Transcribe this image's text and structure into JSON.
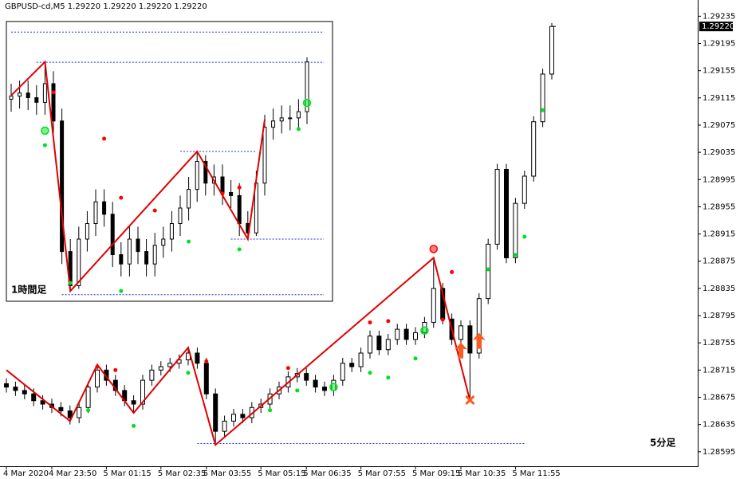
{
  "chart_data": [
    {
      "type": "candlestick",
      "title": "GBPUSD-cd,M5  1.29220 1.29220 1.29220 1.29220",
      "label": "5分足",
      "categories": [
        "4 Mar 2020",
        null,
        null,
        null,
        null,
        "4 Mar 23:50",
        null,
        null,
        null,
        null,
        null,
        "5 Mar 01:15",
        null,
        null,
        null,
        null,
        null,
        "5 Mar 02:35",
        null,
        null,
        null,
        null,
        "5 Mar 03:55",
        null,
        null,
        null,
        null,
        null,
        "5 Mar 05:15",
        null,
        null,
        null,
        null,
        "5 Mar 06:35",
        null,
        null,
        null,
        null,
        null,
        "5 Mar 07:55",
        null,
        null,
        null,
        null,
        null,
        "5 Mar 09:15",
        null,
        null,
        null,
        null,
        "5 Mar 10:35",
        null,
        null,
        null,
        null,
        null,
        "5 Mar 11:55",
        null,
        null,
        null,
        null
      ],
      "open": [
        1.28695,
        1.2869,
        1.28685,
        1.2868,
        1.2867,
        1.28665,
        1.2866,
        1.28655,
        1.28645,
        1.2866,
        1.2869,
        1.28715,
        1.287,
        1.28685,
        1.2867,
        1.28665,
        1.287,
        1.28715,
        1.2872,
        1.28725,
        1.2873,
        1.2874,
        1.28725,
        1.2868,
        1.28625,
        1.2864,
        1.2865,
        1.28645,
        1.2866,
        1.28665,
        1.2868,
        1.2869,
        1.28705,
        1.2871,
        1.287,
        1.2869,
        1.28685,
        1.287,
        1.28725,
        1.2872,
        1.2874,
        1.28765,
        1.28745,
        1.2876,
        1.28775,
        1.2876,
        1.2877,
        1.28785,
        1.28835,
        1.2879,
        1.2876,
        1.2878,
        1.2874,
        1.2882,
        1.289,
        1.2901,
        1.2888,
        1.2896,
        1.29,
        1.2908,
        1.2915
      ],
      "high": [
        1.28703,
        1.28698,
        1.28693,
        1.28688,
        1.28678,
        1.28673,
        1.28668,
        1.28663,
        1.28668,
        1.28698,
        1.28723,
        1.28723,
        1.28708,
        1.28693,
        1.28678,
        1.28708,
        1.28723,
        1.28728,
        1.28733,
        1.28738,
        1.28748,
        1.28748,
        1.28733,
        1.28688,
        1.28648,
        1.28658,
        1.28658,
        1.28668,
        1.28673,
        1.28688,
        1.28698,
        1.28713,
        1.28718,
        1.28718,
        1.28708,
        1.28698,
        1.28708,
        1.28733,
        1.28733,
        1.28748,
        1.28773,
        1.28773,
        1.28768,
        1.28783,
        1.28783,
        1.28778,
        1.28793,
        1.2888,
        1.28843,
        1.28798,
        1.28788,
        1.28788,
        1.28828,
        1.28908,
        1.29018,
        1.29018,
        1.28968,
        1.29008,
        1.29088,
        1.29158,
        1.29225
      ],
      "low": [
        1.28682,
        1.28677,
        1.28672,
        1.28662,
        1.28657,
        1.28652,
        1.28647,
        1.28635,
        1.28637,
        1.28652,
        1.28682,
        1.28692,
        1.28677,
        1.28662,
        1.28652,
        1.28657,
        1.28692,
        1.28707,
        1.28712,
        1.28717,
        1.28722,
        1.28717,
        1.28672,
        1.28605,
        1.28617,
        1.28632,
        1.28637,
        1.28637,
        1.28652,
        1.28657,
        1.28672,
        1.28682,
        1.28697,
        1.28692,
        1.28682,
        1.28677,
        1.28677,
        1.28692,
        1.28712,
        1.28712,
        1.28732,
        1.28737,
        1.28737,
        1.28752,
        1.28752,
        1.28752,
        1.28762,
        1.28777,
        1.28782,
        1.28752,
        1.28752,
        1.2867,
        1.28732,
        1.28812,
        1.28892,
        1.28872,
        1.28872,
        1.28952,
        1.28992,
        1.29072,
        1.29142
      ],
      "close": [
        1.2869,
        1.28685,
        1.2868,
        1.2867,
        1.28665,
        1.2866,
        1.28655,
        1.28645,
        1.2866,
        1.2869,
        1.28715,
        1.287,
        1.28685,
        1.2867,
        1.28665,
        1.287,
        1.28715,
        1.2872,
        1.28725,
        1.2873,
        1.2874,
        1.28725,
        1.2868,
        1.28625,
        1.2864,
        1.2865,
        1.28645,
        1.2866,
        1.28665,
        1.2868,
        1.2869,
        1.28705,
        1.2871,
        1.287,
        1.2869,
        1.28685,
        1.287,
        1.28725,
        1.2872,
        1.2874,
        1.28765,
        1.28745,
        1.2876,
        1.28775,
        1.2876,
        1.2877,
        1.28785,
        1.28835,
        1.2879,
        1.2876,
        1.2878,
        1.2874,
        1.2882,
        1.289,
        1.2901,
        1.2888,
        1.2896,
        1.29,
        1.2908,
        1.2915,
        1.2922
      ],
      "ylim": [
        1.28576,
        1.29253
      ],
      "yticks": [
        1.29235,
        1.29195,
        1.29155,
        1.29115,
        1.29075,
        1.29035,
        1.28995,
        1.28955,
        1.28915,
        1.28875,
        1.28835,
        1.28795,
        1.28755,
        1.28715,
        1.28675,
        1.28635,
        1.28595
      ],
      "last_price": {
        "value": 1.2922,
        "label": "1.29220"
      },
      "zigzag": {
        "color": "#e00000",
        "x": [
          0,
          7,
          10,
          14,
          20,
          23,
          47,
          51
        ],
        "values": [
          1.28715,
          1.2864,
          1.28723,
          1.28652,
          1.28748,
          1.28605,
          1.2888,
          1.2867
        ]
      },
      "levels": [
        {
          "color": "#2030e0",
          "x": [
            21,
            57
          ],
          "value": 1.28607
        }
      ],
      "buy_dots": {
        "color": "#00e020",
        "x": [
          9,
          14,
          20,
          29,
          32,
          40,
          42,
          45,
          53,
          56,
          57,
          59
        ],
        "values": [
          1.28656,
          1.28633,
          1.28711,
          1.28656,
          1.28685,
          1.28711,
          1.28704,
          1.28732,
          1.28863,
          1.28884,
          1.28911,
          1.29097
        ]
      },
      "sell_dots": {
        "color": "#ff0000",
        "x": [
          10,
          12,
          22,
          31,
          40,
          42,
          48,
          49
        ],
        "values": [
          1.2872,
          1.28715,
          1.28728,
          1.28718,
          1.28785,
          1.28787,
          1.28789,
          1.28859
        ]
      },
      "buy_rings": {
        "color": "#00e020",
        "x": [
          36,
          46
        ],
        "values": [
          1.2869,
          1.28773
        ]
      },
      "sell_rings": {
        "color": "#ff0000",
        "x": [
          47
        ],
        "values": [
          1.28893
        ]
      },
      "arrows": {
        "color": "#ff5a1f",
        "x": [
          50,
          52
        ],
        "values": [
          1.28744,
          1.28758
        ]
      },
      "exit_marks": {
        "color": "#ff5a1f",
        "x": [
          51
        ],
        "values": [
          1.28671
        ]
      }
    },
    {
      "type": "candlestick",
      "label": "1時間足",
      "open": [
        1.2905,
        1.2906,
        1.2907,
        1.29055,
        1.2904,
        1.291,
        1.2898,
        1.2856,
        1.2845,
        1.286,
        1.2865,
        1.2872,
        1.2868,
        1.2855,
        1.2852,
        1.286,
        1.2856,
        1.2852,
        1.2858,
        1.286,
        1.2865,
        1.287,
        1.2876,
        1.2885,
        1.2878,
        1.288,
        1.2875,
        1.2874,
        1.2865,
        1.2862,
        1.2878,
        1.2896,
        1.2898,
        1.2899,
        1.2899,
        1.2901
      ],
      "high": [
        1.291,
        1.2911,
        1.2911,
        1.29095,
        1.2917,
        1.2914,
        1.2902,
        1.286,
        1.2864,
        1.2869,
        1.2876,
        1.2876,
        1.2872,
        1.2859,
        1.2864,
        1.2864,
        1.286,
        1.2862,
        1.2864,
        1.2869,
        1.2874,
        1.288,
        1.28882,
        1.2887,
        1.2884,
        1.2884,
        1.2879,
        1.2878,
        1.2869,
        1.2882,
        1.29,
        1.2902,
        1.2903,
        1.2903,
        1.2905,
        1.29185
      ],
      "low": [
        1.2901,
        1.2902,
        1.29015,
        1.29,
        1.29,
        1.2894,
        1.2852,
        1.28433,
        1.2844,
        1.2856,
        1.2861,
        1.2864,
        1.2851,
        1.2848,
        1.2848,
        1.2852,
        1.2848,
        1.2848,
        1.2854,
        1.2856,
        1.2861,
        1.2866,
        1.2872,
        1.2874,
        1.2874,
        1.2871,
        1.287,
        1.2861,
        1.286,
        1.2861,
        1.2874,
        1.2892,
        1.2894,
        1.2895,
        1.2895,
        1.2897
      ],
      "close": [
        1.2906,
        1.2907,
        1.29055,
        1.2904,
        1.291,
        1.2898,
        1.2856,
        1.2845,
        1.286,
        1.2865,
        1.2872,
        1.2868,
        1.2855,
        1.2852,
        1.286,
        1.2856,
        1.2852,
        1.2858,
        1.286,
        1.2865,
        1.287,
        1.2876,
        1.2885,
        1.2878,
        1.288,
        1.2875,
        1.2874,
        1.2865,
        1.2862,
        1.2878,
        1.2896,
        1.2898,
        1.2899,
        1.2899,
        1.2901,
        1.2917
      ],
      "ylim": [
        1.284,
        1.293
      ],
      "zigzag": {
        "color": "#e00000",
        "x": [
          0,
          4,
          7,
          22,
          28,
          30
        ],
        "values": [
          1.29062,
          1.2917,
          1.28433,
          1.28882,
          1.286,
          1.28985
        ]
      },
      "levels": [
        {
          "color": "#2030e0",
          "x": [
            0,
            37
          ],
          "value": 1.29266
        },
        {
          "color": "#2030e0",
          "x": [
            3,
            37
          ],
          "value": 1.29169
        },
        {
          "color": "#2030e0",
          "x": [
            20,
            29
          ],
          "value": 1.28882
        },
        {
          "color": "#2030e0",
          "x": [
            26,
            37
          ],
          "value": 1.286
        },
        {
          "color": "#2030e0",
          "x": [
            6,
            37
          ],
          "value": 1.28421
        }
      ],
      "buy_dots": {
        "color": "#00e020",
        "x": [
          4,
          7,
          13,
          21,
          27,
          34
        ],
        "values": [
          1.28902,
          1.28459,
          1.28433,
          1.28592,
          1.28567,
          1.28954
        ]
      },
      "sell_dots": {
        "color": "#ff0000",
        "x": [
          5,
          11,
          13,
          17,
          25,
          27
        ],
        "values": [
          1.29072,
          1.28923,
          1.28733,
          1.28692,
          1.28746,
          1.28766
        ]
      },
      "buy_rings": {
        "color": "#00e020",
        "x": [
          4,
          35
        ],
        "values": [
          1.28949,
          1.29038
        ]
      }
    }
  ]
}
